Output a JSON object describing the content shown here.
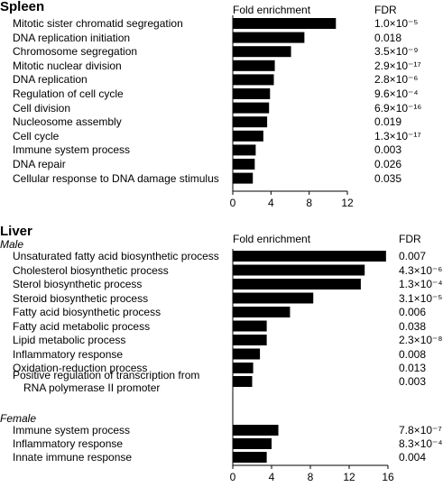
{
  "chart_data": [
    {
      "type": "hbar",
      "title": "Spleen",
      "value_axis_label": "Fold enrichment",
      "fdr_label": "FDR",
      "color": "#000000",
      "categories": [
        "Mitotic sister chromatid segregation",
        "DNA replication initiation",
        "Chromosome segregation",
        "Mitotic nuclear division",
        "DNA replication",
        "Regulation of cell cycle",
        "Cell division",
        "Nucleosome assembly",
        "Cell cycle",
        "Immune system process",
        "DNA repair",
        "Cellular response to DNA damage stimulus"
      ],
      "values": [
        10.8,
        7.5,
        6.1,
        4.4,
        4.3,
        3.9,
        3.8,
        3.6,
        3.2,
        2.4,
        2.3,
        2.1
      ],
      "fdr": [
        "1.0×10⁻⁵",
        "0.018",
        "3.5×10⁻⁹",
        "2.9×10⁻¹⁷",
        "2.8×10⁻⁶",
        "9.6×10⁻⁴",
        "6.9×10⁻¹⁶",
        "0.019",
        "1.3×10⁻¹⁷",
        "0.003",
        "0.026",
        "0.035"
      ],
      "xlim": [
        0,
        12
      ],
      "xticks": [
        0,
        4,
        8,
        12
      ]
    },
    {
      "type": "hbar",
      "title": "Liver",
      "subtitle": "Male",
      "value_axis_label": "Fold enrichment",
      "fdr_label": "FDR",
      "color": "#000000",
      "categories": [
        "Unsaturated fatty acid biosynthetic process",
        "Cholesterol biosynthetic process",
        "Sterol biosynthetic process",
        "Steroid biosynthetic process",
        "Fatty acid biosynthetic process",
        "Fatty acid metabolic process",
        "Lipid metabolic process",
        "Inflammatory response",
        "Oxidation-reduction process",
        "Positive regulation of transcription from\nRNA polymerase II promoter"
      ],
      "values": [
        15.8,
        13.6,
        13.2,
        8.3,
        5.9,
        3.5,
        3.5,
        2.8,
        2.1,
        2.0
      ],
      "fdr": [
        "0.007",
        "4.3×10⁻⁶",
        "1.3×10⁻⁴",
        "3.1×10⁻⁵",
        "0.006",
        "0.038",
        "2.3×10⁻⁸",
        "0.008",
        "0.013",
        "0.003"
      ],
      "xlim": [
        0,
        16
      ]
    },
    {
      "type": "hbar",
      "subtitle": "Female",
      "color": "#000000",
      "categories": [
        "Immune system process",
        "Inflammatory response",
        "Innate immune response"
      ],
      "values": [
        4.7,
        4.0,
        3.5
      ],
      "fdr": [
        "7.8×10⁻⁷",
        "8.3×10⁻⁴",
        "0.004"
      ],
      "xlim": [
        0,
        16
      ],
      "xticks": [
        0,
        4,
        8,
        12,
        16
      ]
    }
  ]
}
